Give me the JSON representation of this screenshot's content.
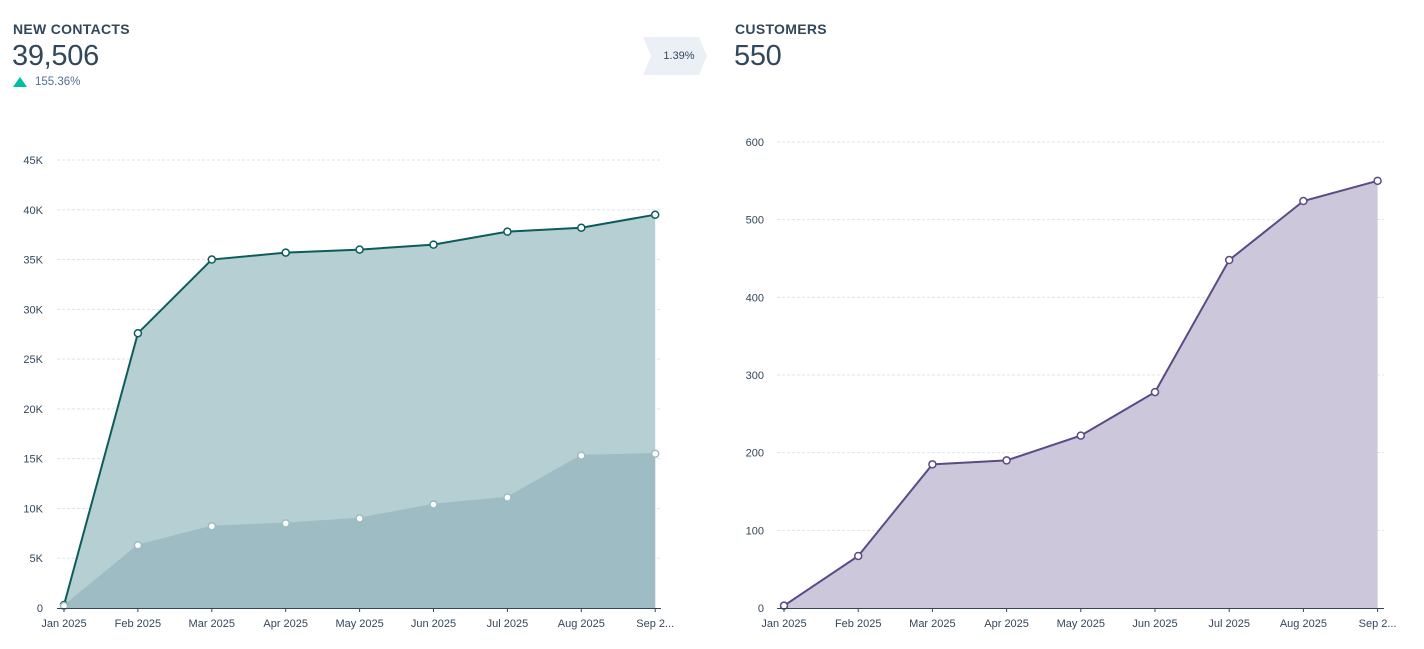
{
  "contacts_panel": {
    "title": "NEW CONTACTS",
    "value": "39,506",
    "change": "155.36%"
  },
  "conversion_rate": "1.39%",
  "customers_panel": {
    "title": "CUSTOMERS",
    "value": "550"
  },
  "chart_data": [
    {
      "type": "area",
      "title": "",
      "xlabel": "",
      "ylabel": "",
      "categories": [
        "Jan 2025",
        "Feb 2025",
        "Mar 2025",
        "Apr 2025",
        "May 2025",
        "Jun 2025",
        "Jul 2025",
        "Aug 2025",
        "Sep 2..."
      ],
      "yticks": [
        "0",
        "5K",
        "10K",
        "15K",
        "20K",
        "25K",
        "30K",
        "35K",
        "40K",
        "45K"
      ],
      "ylim": [
        0,
        45000
      ],
      "grid": true,
      "series": [
        {
          "values": [
            300,
            27600,
            35000,
            35700,
            36000,
            36500,
            37800,
            38200,
            39506
          ],
          "line_color": "#0b5c5b",
          "fill_color": "#b5cfd3"
        },
        {
          "values": [
            200,
            6300,
            8200,
            8500,
            9000,
            10400,
            11100,
            15300,
            15500
          ],
          "line_color": "#9fbcc3",
          "fill_color": "#9ebcc4"
        }
      ]
    },
    {
      "type": "area",
      "title": "",
      "xlabel": "",
      "ylabel": "",
      "categories": [
        "Jan 2025",
        "Feb 2025",
        "Mar 2025",
        "Apr 2025",
        "May 2025",
        "Jun 2025",
        "Jul 2025",
        "Aug 2025",
        "Sep 2..."
      ],
      "yticks": [
        "0",
        "100",
        "200",
        "300",
        "400",
        "500",
        "600"
      ],
      "ylim": [
        0,
        600
      ],
      "grid": true,
      "series": [
        {
          "values": [
            3,
            67,
            185,
            190,
            222,
            278,
            448,
            524,
            550
          ],
          "line_color": "#5b4a85",
          "fill_color": "#ccc7db"
        }
      ]
    }
  ]
}
